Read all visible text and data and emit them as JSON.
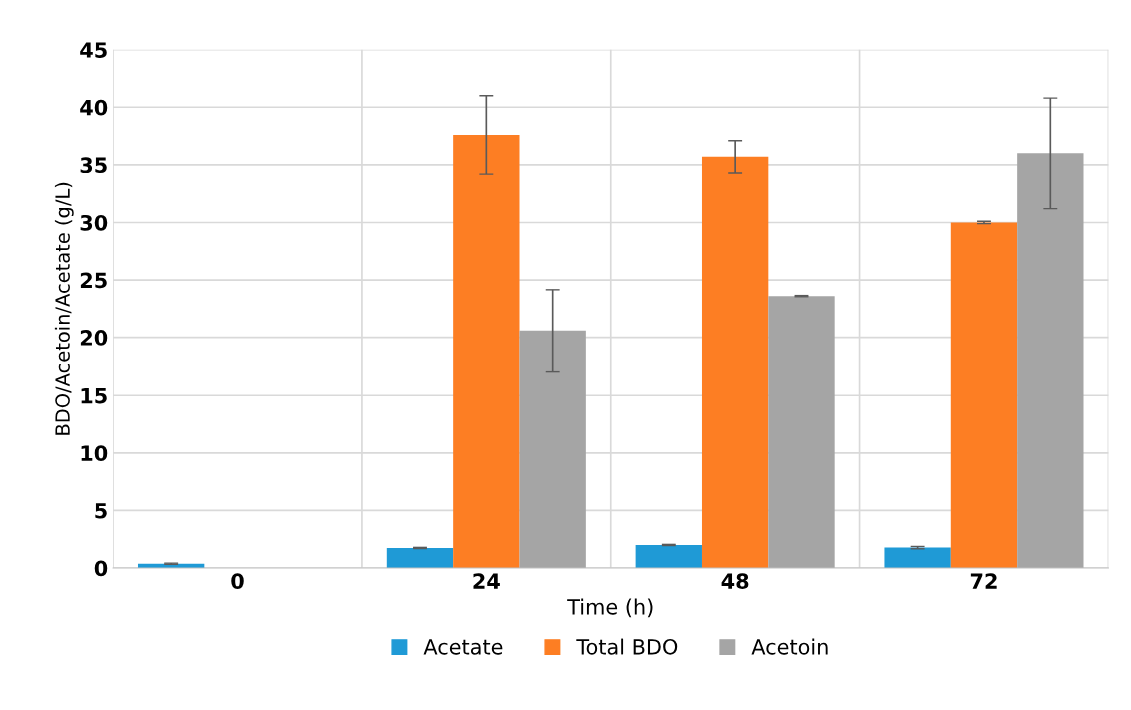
{
  "chart_data": {
    "type": "bar",
    "xlabel": "Time (h)",
    "ylabel": "BDO/Acetoin/Acetate (g/L)",
    "categories": [
      "0",
      "24",
      "48",
      "72"
    ],
    "series": [
      {
        "name": "Acetate",
        "color": "#1f9ad6",
        "values": [
          0.37,
          1.74,
          2.0,
          1.77
        ],
        "errors": [
          0.05,
          0.05,
          0.05,
          0.1
        ]
      },
      {
        "name": "Total BDO",
        "color": "#fd7e23",
        "values": [
          null,
          37.6,
          35.7,
          30.0
        ],
        "errors": [
          null,
          3.4,
          1.4,
          0.1
        ]
      },
      {
        "name": "Acetoin",
        "color": "#a5a5a5",
        "values": [
          null,
          20.6,
          23.6,
          36.0
        ],
        "errors": [
          null,
          3.55,
          0.05,
          4.8
        ]
      }
    ],
    "ylim": [
      0,
      45
    ],
    "yticks": [
      0,
      5,
      10,
      15,
      20,
      25,
      30,
      35,
      40,
      45
    ],
    "grid": true,
    "legend": "bottom"
  }
}
